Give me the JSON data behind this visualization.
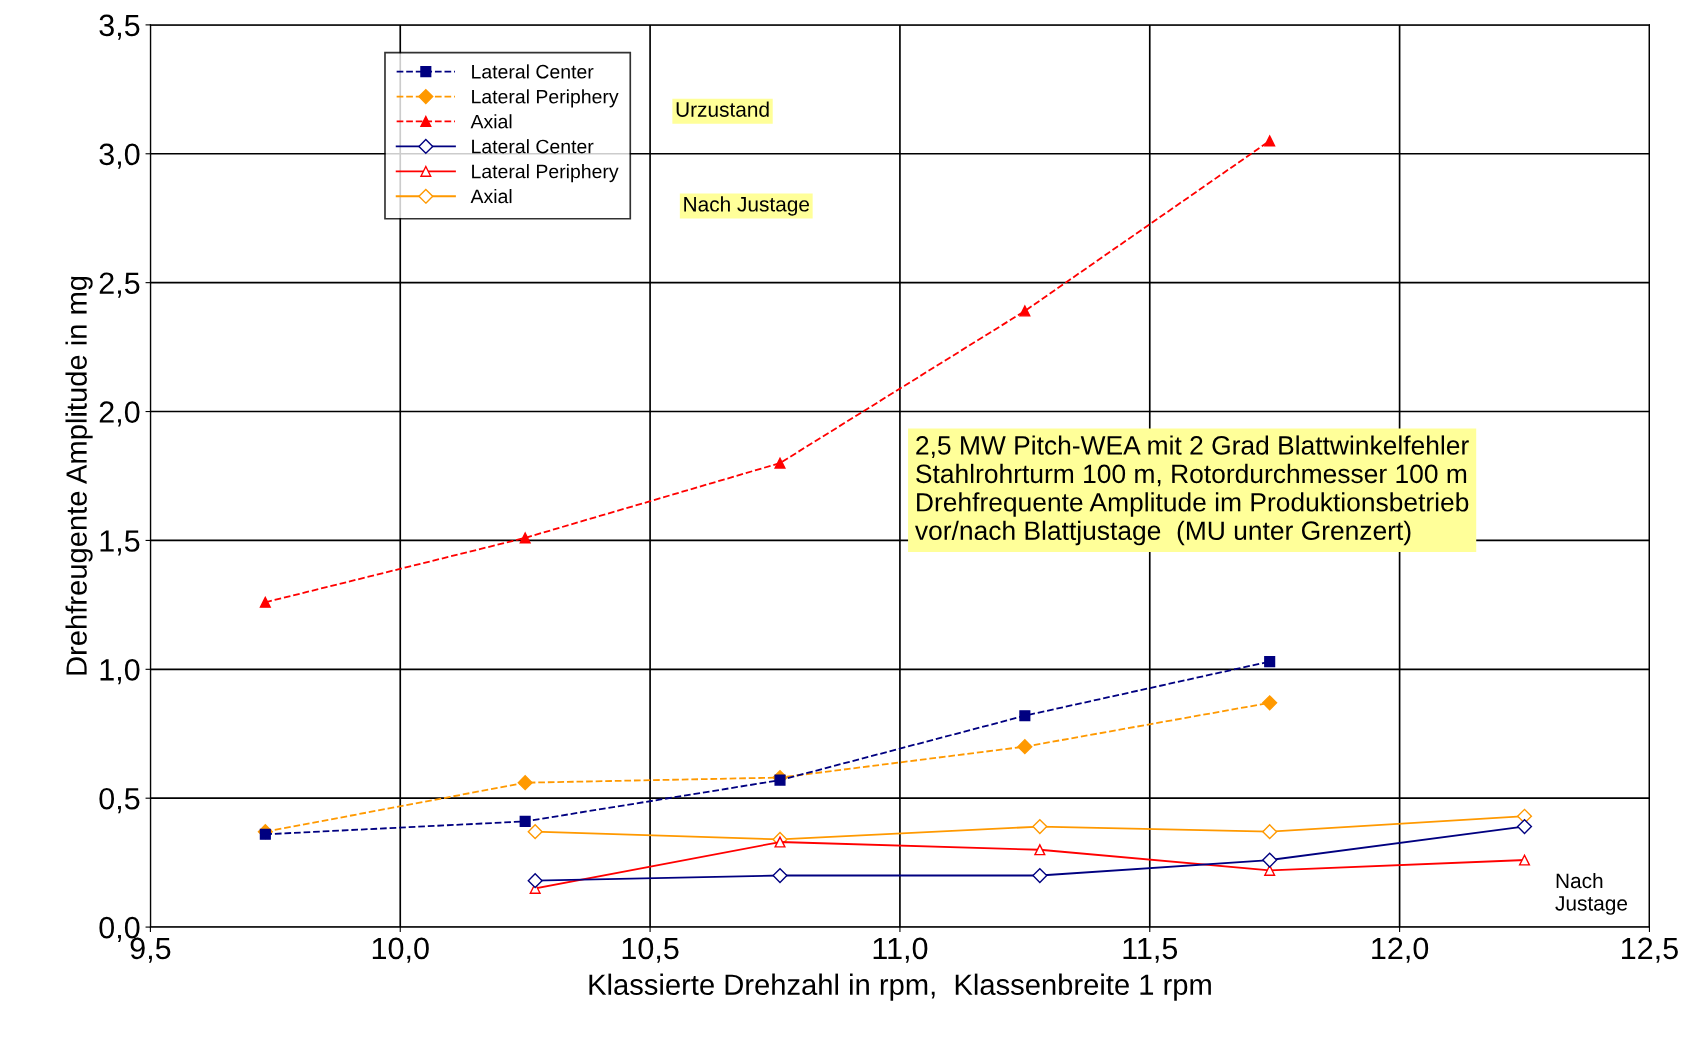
{
  "chart_data": {
    "type": "line",
    "xlabel": "Klassierte Drehzahl in rpm,  Klassenbreite 1 rpm",
    "ylabel": "Drehfreugente Amplitude in mg",
    "xlim": [
      9.5,
      12.5
    ],
    "ylim": [
      0,
      3.5
    ],
    "xticks": [
      {
        "value": 9.5,
        "label": "9,5"
      },
      {
        "value": 10.0,
        "label": "10,0"
      },
      {
        "value": 10.5,
        "label": "10,5"
      },
      {
        "value": 11.0,
        "label": "11,0"
      },
      {
        "value": 11.5,
        "label": "11,5"
      },
      {
        "value": 12.0,
        "label": "12,0"
      },
      {
        "value": 12.5,
        "label": "12,5"
      }
    ],
    "yticks": [
      {
        "value": 0,
        "label": "0,0"
      },
      {
        "value": 0.5,
        "label": "0,5"
      },
      {
        "value": 1.0,
        "label": "1,0"
      },
      {
        "value": 1.5,
        "label": "1,5"
      },
      {
        "value": 2.0,
        "label": "2,0"
      },
      {
        "value": 2.5,
        "label": "2,5"
      },
      {
        "value": 3.0,
        "label": "3,0"
      },
      {
        "value": 3.5,
        "label": "3,5"
      }
    ],
    "grid": true,
    "legend": "top left",
    "series": [
      {
        "name": "Lateral Center",
        "color": "#000080",
        "marker": "square",
        "line_style": "dashed",
        "x": [
          9.73,
          10.25,
          10.76,
          11.25,
          11.74
        ],
        "values": [
          0.36,
          0.41,
          0.57,
          0.82,
          1.03
        ]
      },
      {
        "name": "Lateral Periphery",
        "color": "#ff9900",
        "marker": "diamond",
        "line_style": "dashed",
        "x": [
          9.73,
          10.25,
          10.76,
          11.25,
          11.74
        ],
        "values": [
          0.37,
          0.56,
          0.58,
          0.7,
          0.87
        ]
      },
      {
        "name": "Axial",
        "color": "#ff0000",
        "marker": "triangle",
        "line_style": "dashed",
        "x": [
          9.73,
          10.25,
          10.76,
          11.25,
          11.74
        ],
        "values": [
          1.26,
          1.51,
          1.8,
          2.39,
          3.05
        ]
      },
      {
        "name": "Lateral Center",
        "color": "#000080",
        "marker": "diamond",
        "line_style": "solid",
        "x": [
          10.27,
          10.76,
          11.28,
          11.74,
          12.25
        ],
        "values": [
          0.18,
          0.2,
          0.2,
          0.26,
          0.39
        ]
      },
      {
        "name": "Lateral Periphery",
        "color": "#ff0000",
        "marker": "triangle",
        "line_style": "solid",
        "x": [
          10.27,
          10.76,
          11.28,
          11.74,
          12.25
        ],
        "values": [
          0.15,
          0.33,
          0.3,
          0.22,
          0.26
        ]
      },
      {
        "name": "Axial",
        "color": "#ff9900",
        "marker": "diamond",
        "line_style": "solid",
        "x": [
          10.27,
          10.76,
          11.28,
          11.74,
          12.25
        ],
        "values": [
          0.37,
          0.34,
          0.39,
          0.37,
          0.43
        ]
      }
    ],
    "annotations": [
      "Urzustand",
      "Nach Justage",
      "2,5 MW Pitch-WEA mit 2 Grad Blattwinkelfehler\nStahlrohrturm 100 m, Rotordurchmesser 100 m\nDrehfrequente Amplitude im Produktionsbetrieb\nvor/nach Blattjustage  (MU unter Grenzert)",
      "Nach\nJustage"
    ]
  }
}
